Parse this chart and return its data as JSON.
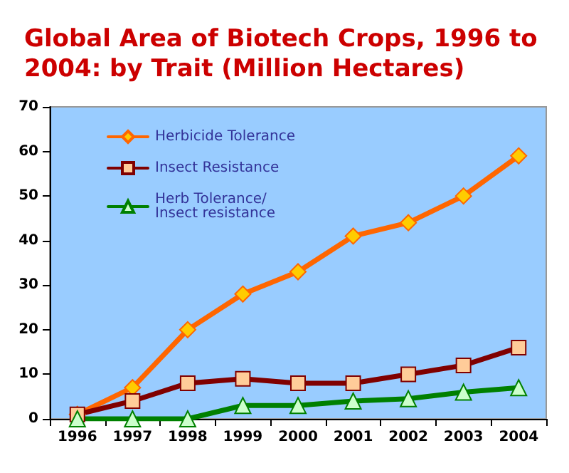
{
  "chart_data": {
    "type": "line",
    "title": "Global Area of Biotech Crops, 1996 to 2004: by Trait (Million Hectares)",
    "categories": [
      "1996",
      "1997",
      "1998",
      "1999",
      "2000",
      "2001",
      "2002",
      "2003",
      "2004"
    ],
    "series": [
      {
        "name": "Herbicide Tolerance",
        "color": "#ff6600",
        "marker": "diamond",
        "values": [
          1,
          7,
          20,
          28,
          33,
          41,
          44,
          50,
          59
        ]
      },
      {
        "name": "Insect Resistance",
        "color": "#800000",
        "marker": "square",
        "values": [
          1,
          4,
          8,
          9,
          8,
          8,
          10,
          12,
          16
        ]
      },
      {
        "name": "Herb Tolerance/Insect resistance",
        "color": "#008000",
        "marker": "triangle",
        "values": [
          0,
          0,
          0,
          3,
          3,
          4,
          4.5,
          6,
          7
        ]
      }
    ],
    "ylim": [
      0,
      70
    ],
    "yticks": [
      0,
      10,
      20,
      30,
      40,
      50,
      60,
      70
    ],
    "grid": false,
    "legend": "top left"
  }
}
